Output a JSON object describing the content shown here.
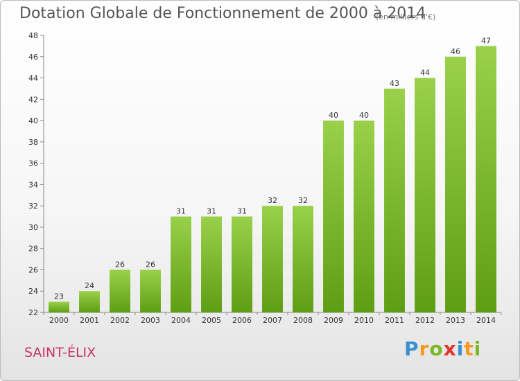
{
  "header": {
    "title": "Dotation Globale de Fonctionnement de 2000 à 2014",
    "unit": "(en milliers d'€)"
  },
  "footer": {
    "commune": "SAINT-ÉLIX",
    "logo": [
      "P",
      "r",
      "o",
      "x",
      "i",
      "t",
      "i"
    ],
    "logo_colors": [
      "#3a8fd0",
      "#f39a1e",
      "#7ab829",
      "#e5332a",
      "#3a8fd0",
      "#f39a1e",
      "#7ab829"
    ]
  },
  "chart_data": {
    "type": "bar",
    "title": "Dotation Globale de Fonctionnement de 2000 à 2014",
    "subtitle": "(en milliers d'€)",
    "categories": [
      "2000",
      "2001",
      "2002",
      "2003",
      "2004",
      "2005",
      "2006",
      "2007",
      "2008",
      "2009",
      "2010",
      "2011",
      "2012",
      "2013",
      "2014"
    ],
    "values": [
      23,
      24,
      26,
      26,
      31,
      31,
      31,
      32,
      32,
      40,
      40,
      43,
      44,
      46,
      47
    ],
    "ylim": [
      22,
      48
    ],
    "yticks": [
      22,
      24,
      26,
      28,
      30,
      32,
      34,
      36,
      38,
      40,
      42,
      44,
      46,
      48
    ],
    "grid": false,
    "bar_color_top": "#99d14a",
    "bar_color_bottom": "#5e9e12"
  }
}
